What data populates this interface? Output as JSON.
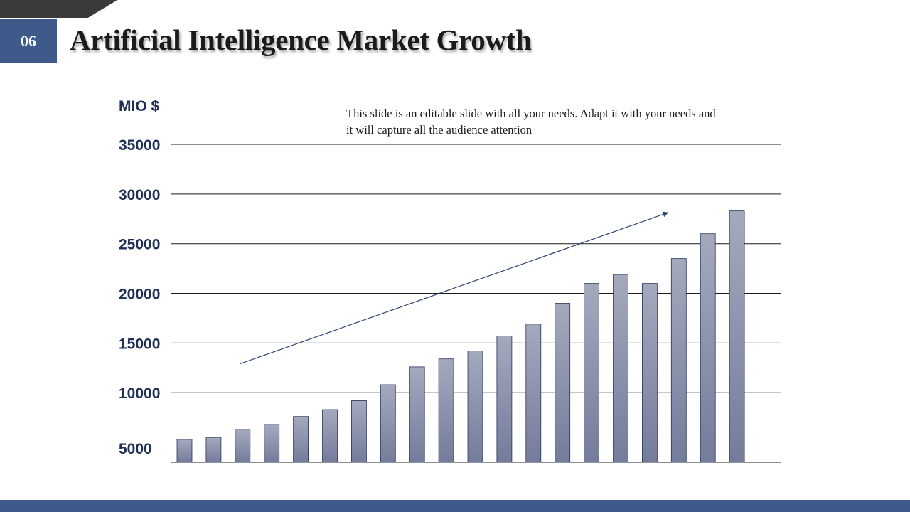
{
  "slide": {
    "number": "06",
    "title": "Artificial Intelligence Market Growth",
    "note": "This slide is an editable slide with all your needs. Adapt it with your needs and it will capture all the audience attention"
  },
  "colors": {
    "accent": "#3d5a8a",
    "bar_top": "#a4a9bd",
    "bar_bottom": "#747c9c",
    "bar_stroke": "#2a3557",
    "axis_text": "#1f2f55",
    "gridline": "#1b1b1b",
    "trend_arrow": "#2f4672"
  },
  "chart_data": {
    "type": "bar",
    "ylabel": "MIO $",
    "xlabel": "",
    "title": "",
    "ylim": [
      3000,
      35000
    ],
    "y_ticks": [
      35000,
      30000,
      25000,
      20000,
      15000,
      10000,
      5000
    ],
    "grid": true,
    "values": [
      5300,
      5500,
      6300,
      6800,
      7600,
      8300,
      9200,
      10800,
      12600,
      13400,
      14200,
      15700,
      16900,
      19000,
      21000,
      21900,
      21000,
      23500,
      26000,
      28300
    ],
    "trend_arrow": {
      "from": [
        1.9,
        12900
      ],
      "to": [
        16.6,
        28100
      ]
    }
  }
}
